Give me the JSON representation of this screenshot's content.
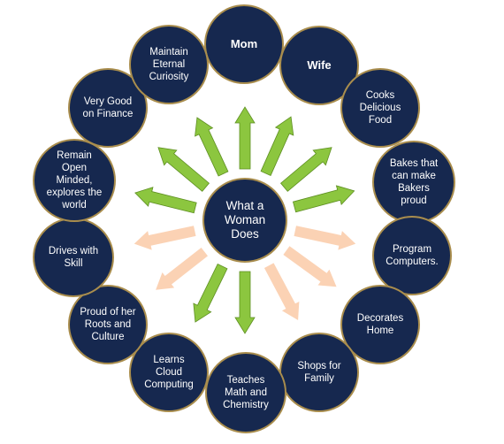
{
  "center": {
    "label": "What a\nWoman\nDoes"
  },
  "roles": [
    {
      "label": "Mom",
      "bold": true
    },
    {
      "label": "Wife",
      "bold": true
    },
    {
      "label": "Cooks\nDelicious\nFood",
      "bold": false
    },
    {
      "label": "Bakes that\ncan make\nBakers\nproud",
      "bold": false
    },
    {
      "label": "Program\nComputers.",
      "bold": false
    },
    {
      "label": "Decorates\nHome",
      "bold": false
    },
    {
      "label": "Shops for\nFamily",
      "bold": false
    },
    {
      "label": "Teaches\nMath and\nChemistry",
      "bold": false
    },
    {
      "label": "Learns\nCloud\nComputing",
      "bold": false
    },
    {
      "label": "Proud of her\nRoots and\nCulture",
      "bold": false
    },
    {
      "label": "Drives with\nSkill",
      "bold": false
    },
    {
      "label": "Remain\nOpen\nMinded,\nexplores the\nworld",
      "bold": false
    },
    {
      "label": "Very Good\non Finance",
      "bold": false
    },
    {
      "label": "Maintain\nEternal\nCuriosity",
      "bold": false
    }
  ],
  "colors": {
    "node_fill": "#16284f",
    "node_border": "#a98d4d",
    "arrow_green": "#8cc63f",
    "arrow_green_edge": "#5e8f22",
    "arrow_peach": "#fbd2b4"
  }
}
